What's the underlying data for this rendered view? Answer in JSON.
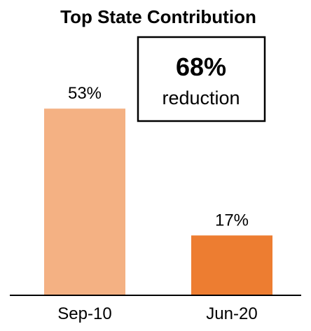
{
  "chart_data": {
    "type": "bar",
    "title": "Top State Contribution",
    "categories": [
      "Sep-10",
      "Jun-20"
    ],
    "values": [
      53,
      17
    ],
    "data_labels": [
      "53%",
      "17%"
    ],
    "unit": "%",
    "bar_colors": [
      "#F4B183",
      "#ED7D31"
    ],
    "ylim": [
      0,
      60
    ],
    "grid": false,
    "legend": "none",
    "xlabel": "",
    "ylabel": "",
    "annotation": {
      "value": "68%",
      "text": "reduction"
    }
  }
}
